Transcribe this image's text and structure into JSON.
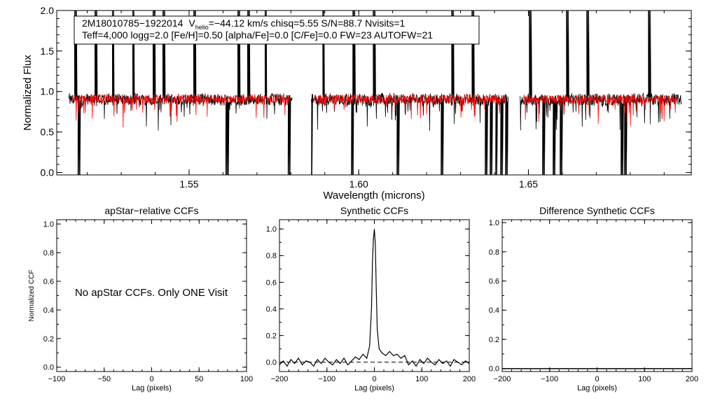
{
  "colors": {
    "observed": "#000000",
    "model": "#ff0000",
    "axis": "#000000"
  },
  "spectrum": {
    "star_id": "2M18010785−1922014",
    "vhelio_prefix": "V",
    "vhelio_sub": "helio",
    "vhelio_rest": "=−44.12 km/s  chisq=5.55  S/N=88.7  Nvisits=1",
    "params_line": "Teff=4,000 logg=2.0 [Fe/H]=0.50 [alpha/Fe]=0.0 [C/Fe]=0.0 FW=23 AUTOFW=21"
  },
  "no_ccf_message": "No apStar CCFs.  Only ONE Visit",
  "chart_data": [
    {
      "type": "line",
      "title": "",
      "xlabel": "Wavelength (microns)",
      "ylabel": "Normalized Flux",
      "xlim": [
        1.511,
        1.698
      ],
      "ylim": [
        -0.03,
        2.0
      ],
      "xticks": [
        1.55,
        1.6,
        1.65
      ],
      "xtick_labels": [
        "1.55",
        "1.60",
        "1.65"
      ],
      "yticks": [
        0.0,
        0.5,
        1.0,
        1.5,
        2.0
      ],
      "ytick_labels": [
        "0.0",
        "0.5",
        "1.0",
        "1.5",
        "2.0"
      ],
      "chip_ranges": [
        [
          1.5145,
          1.5805
        ],
        [
          1.586,
          1.644
        ],
        [
          1.6475,
          1.695
        ]
      ],
      "model_ranges": [
        [
          1.5155,
          1.5795
        ],
        [
          1.587,
          1.643
        ],
        [
          1.6485,
          1.694
        ]
      ],
      "series": [
        {
          "name": "observed",
          "color": "#000000",
          "continuum": 0.9
        },
        {
          "name": "model",
          "color": "#ff0000",
          "continuum": 0.91
        }
      ],
      "spikes": [
        1.5165,
        1.5225,
        1.5275,
        1.5335,
        1.5395,
        1.5425,
        1.5515,
        1.5645,
        1.5675,
        1.5725,
        1.5895,
        1.5985,
        1.6045,
        1.6275,
        1.6335,
        1.6505,
        1.6615,
        1.6675,
        1.6855
      ],
      "deep_lines": [
        1.5175,
        1.561,
        1.5612,
        1.5795,
        1.586,
        1.598,
        1.6115,
        1.6245,
        1.6375,
        1.639,
        1.6405,
        1.642,
        1.6435,
        1.6545,
        1.6575,
        1.6595,
        1.6775,
        1.6785
      ]
    },
    {
      "type": "line",
      "title": "apStar−relative CCFs",
      "xlabel": "Lag (pixels)",
      "ylabel": "Normalized CCF",
      "xlim": [
        -100,
        100
      ],
      "ylim": [
        -0.03,
        1.03
      ],
      "xticks": [
        -100,
        -50,
        0,
        50,
        100
      ],
      "xtick_labels": [
        "−100",
        "−50",
        "0",
        "50",
        "100"
      ],
      "yticks": [
        0.0,
        0.2,
        0.4,
        0.6,
        0.8,
        1.0
      ],
      "ytick_labels": [
        "0.0",
        "0.2",
        "0.4",
        "0.6",
        "0.8",
        "1.0"
      ],
      "series": []
    },
    {
      "type": "line",
      "title": "Synthetic CCFs",
      "xlabel": "Lag (pixels)",
      "ylabel": "",
      "xlim": [
        -200,
        200
      ],
      "ylim": [
        -0.07,
        1.07
      ],
      "xticks": [
        -200,
        -100,
        0,
        100,
        200
      ],
      "xtick_labels": [
        "−200",
        "−100",
        "0",
        "100",
        "200"
      ],
      "yticks": [
        0.0,
        0.2,
        0.4,
        0.6,
        0.8,
        1.0
      ],
      "ytick_labels": [
        "0.0",
        "0.2",
        "0.4",
        "0.6",
        "0.8",
        "1.0"
      ],
      "zero_line": 0.0,
      "series": [
        {
          "name": "synthetic-ccf",
          "color": "#000000",
          "x": [
            -200,
            -192,
            -184,
            -176,
            -168,
            -160,
            -152,
            -144,
            -136,
            -128,
            -120,
            -112,
            -104,
            -96,
            -88,
            -80,
            -72,
            -64,
            -56,
            -48,
            -40,
            -32,
            -24,
            -16,
            -10,
            -6,
            -4,
            -2,
            0,
            2,
            4,
            6,
            10,
            16,
            24,
            32,
            40,
            48,
            56,
            64,
            72,
            80,
            88,
            96,
            104,
            112,
            120,
            128,
            136,
            144,
            152,
            160,
            168,
            176,
            184,
            192,
            200
          ],
          "y": [
            -0.02,
            0.01,
            -0.03,
            0.02,
            -0.01,
            0.03,
            -0.02,
            0.01,
            0.0,
            -0.03,
            0.02,
            -0.01,
            0.03,
            0.0,
            -0.02,
            0.02,
            -0.01,
            0.03,
            -0.02,
            0.01,
            0.04,
            0.02,
            0.06,
            0.03,
            0.12,
            0.4,
            0.75,
            0.92,
            1.0,
            0.88,
            0.55,
            0.25,
            0.1,
            0.07,
            0.05,
            0.08,
            0.05,
            0.06,
            0.03,
            0.05,
            -0.02,
            0.01,
            -0.03,
            0.02,
            -0.01,
            0.03,
            0.0,
            -0.02,
            0.02,
            -0.01,
            0.01,
            -0.03,
            0.02,
            0.0,
            -0.02,
            0.01,
            -0.01
          ]
        }
      ]
    },
    {
      "type": "line",
      "title": "Difference Synthetic CCFs",
      "xlabel": "Lag (pixels)",
      "ylabel": "",
      "xlim": [
        -200,
        200
      ],
      "ylim": [
        -0.02,
        1.02
      ],
      "xticks": [
        -200,
        -100,
        0,
        100,
        200
      ],
      "xtick_labels": [
        "−200",
        "−100",
        "0",
        "100",
        "200"
      ],
      "yticks": [
        0.0,
        0.2,
        0.4,
        0.6,
        0.8,
        1.0
      ],
      "ytick_labels": [
        "0.0",
        "0.2",
        "0.4",
        "0.6",
        "0.8",
        "1.0"
      ],
      "series": [
        {
          "name": "difference-ccf",
          "color": "#000000",
          "x": [
            -200,
            200
          ],
          "y": [
            0.0,
            0.0
          ]
        }
      ]
    }
  ]
}
